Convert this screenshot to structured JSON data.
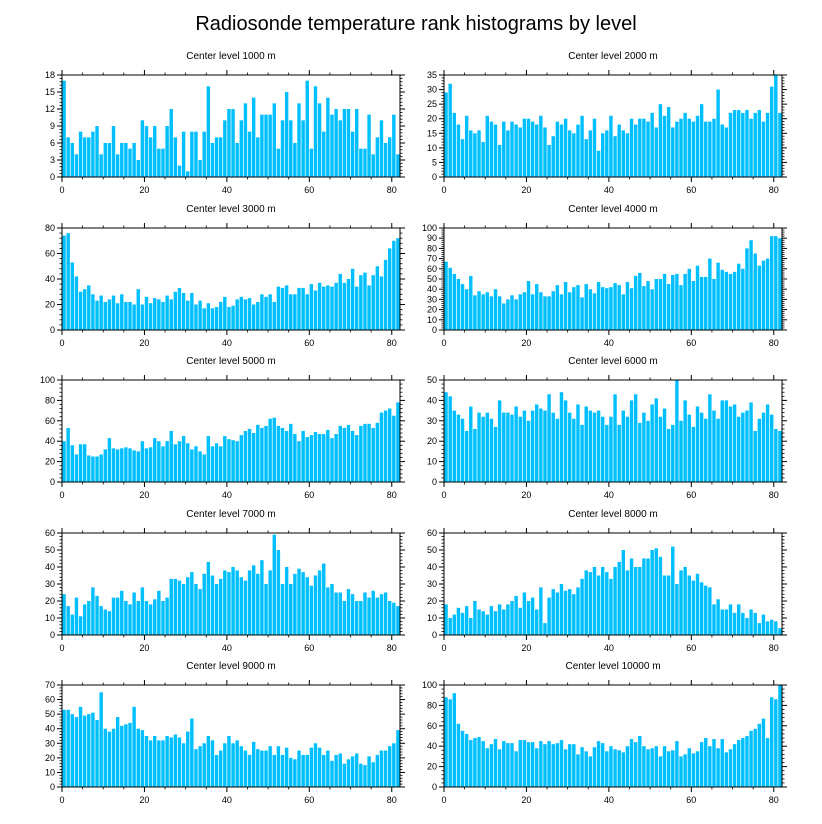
{
  "title": "Radiosonde temperature rank histograms by level",
  "bar_color": "#00bfff",
  "chart_data": [
    {
      "type": "bar",
      "title": "Center level 1000 m",
      "xlim": [
        0,
        82
      ],
      "ylim": [
        0,
        18
      ],
      "xticks": [
        0,
        20,
        40,
        60,
        80
      ],
      "yticks": [
        0,
        3,
        6,
        9,
        12,
        15,
        18
      ],
      "values": [
        17,
        7,
        6,
        4,
        8,
        7,
        7,
        8,
        9,
        4,
        6,
        6,
        9,
        4,
        6,
        6,
        5,
        6,
        3,
        10,
        9,
        7,
        9,
        5,
        5,
        9,
        12,
        7,
        2,
        8,
        1,
        8,
        8,
        3,
        8,
        16,
        6,
        7,
        7,
        10,
        12,
        12,
        6,
        10,
        13,
        8,
        14,
        7,
        11,
        11,
        11,
        13,
        5,
        10,
        15,
        10,
        6,
        13,
        10,
        17,
        5,
        16,
        13,
        8,
        14,
        11,
        12,
        10,
        12,
        12,
        8,
        12,
        5,
        5,
        11,
        4,
        7,
        10,
        6,
        7,
        11,
        4
      ]
    },
    {
      "type": "bar",
      "title": "Center level 2000 m",
      "xlim": [
        0,
        82
      ],
      "ylim": [
        0,
        35
      ],
      "xticks": [
        0,
        20,
        40,
        60,
        80
      ],
      "yticks": [
        0,
        5,
        10,
        15,
        20,
        25,
        30,
        35
      ],
      "values": [
        29,
        32,
        22,
        18,
        13,
        21,
        16,
        15,
        16,
        12,
        21,
        19,
        18,
        11,
        19,
        16,
        19,
        18,
        17,
        20,
        20,
        19,
        18,
        21,
        17,
        11,
        14,
        19,
        18,
        20,
        16,
        15,
        18,
        21,
        13,
        16,
        20,
        9,
        15,
        16,
        21,
        14,
        18,
        16,
        15,
        20,
        18,
        20,
        20,
        19,
        22,
        17,
        25,
        21,
        24,
        17,
        19,
        20,
        22,
        20,
        19,
        21,
        25,
        19,
        19,
        20,
        30,
        18,
        17,
        22,
        23,
        23,
        22,
        23,
        20,
        22,
        23,
        19,
        22,
        31,
        35,
        22
      ]
    },
    {
      "type": "bar",
      "title": "Center level 3000 m",
      "xlim": [
        0,
        82
      ],
      "ylim": [
        0,
        80
      ],
      "xticks": [
        0,
        20,
        40,
        60,
        80
      ],
      "yticks": [
        0,
        20,
        40,
        60,
        80
      ],
      "values": [
        74,
        76,
        53,
        42,
        30,
        32,
        35,
        28,
        23,
        27,
        22,
        24,
        27,
        21,
        28,
        22,
        22,
        20,
        32,
        20,
        26,
        21,
        25,
        24,
        22,
        27,
        24,
        30,
        33,
        29,
        23,
        29,
        20,
        23,
        17,
        21,
        17,
        18,
        22,
        26,
        18,
        19,
        24,
        26,
        24,
        25,
        20,
        22,
        28,
        26,
        28,
        22,
        34,
        33,
        35,
        28,
        28,
        33,
        33,
        28,
        36,
        31,
        37,
        34,
        35,
        34,
        37,
        44,
        37,
        40,
        48,
        34,
        43,
        45,
        35,
        43,
        50,
        42,
        55,
        64,
        70,
        72
      ]
    },
    {
      "type": "bar",
      "title": "Center level 4000 m",
      "xlim": [
        0,
        82
      ],
      "ylim": [
        0,
        100
      ],
      "xticks": [
        0,
        20,
        40,
        60,
        80
      ],
      "yticks": [
        0,
        10,
        20,
        30,
        40,
        50,
        60,
        70,
        80,
        90,
        100
      ],
      "values": [
        67,
        61,
        55,
        50,
        45,
        40,
        53,
        34,
        38,
        35,
        37,
        33,
        40,
        33,
        26,
        30,
        34,
        30,
        35,
        37,
        48,
        35,
        45,
        37,
        33,
        33,
        38,
        44,
        35,
        47,
        37,
        42,
        44,
        32,
        45,
        40,
        36,
        47,
        42,
        41,
        42,
        46,
        44,
        35,
        47,
        41,
        53,
        56,
        43,
        48,
        40,
        50,
        50,
        55,
        45,
        54,
        55,
        44,
        55,
        60,
        48,
        63,
        52,
        52,
        70,
        50,
        66,
        59,
        57,
        55,
        57,
        65,
        60,
        80,
        88,
        75,
        63,
        68,
        70,
        92,
        92,
        90
      ]
    },
    {
      "type": "bar",
      "title": "Center level 5000 m",
      "xlim": [
        0,
        82
      ],
      "ylim": [
        0,
        100
      ],
      "xticks": [
        0,
        20,
        40,
        60,
        80
      ],
      "yticks": [
        0,
        20,
        40,
        60,
        80,
        100
      ],
      "values": [
        40,
        53,
        36,
        27,
        37,
        37,
        26,
        25,
        25,
        27,
        32,
        43,
        33,
        32,
        33,
        34,
        33,
        31,
        30,
        40,
        33,
        34,
        43,
        40,
        35,
        40,
        50,
        37,
        40,
        45,
        38,
        32,
        35,
        30,
        27,
        45,
        35,
        38,
        35,
        45,
        42,
        41,
        40,
        46,
        50,
        52,
        48,
        56,
        53,
        55,
        62,
        63,
        55,
        53,
        50,
        57,
        47,
        40,
        50,
        44,
        46,
        49,
        47,
        47,
        51,
        43,
        47,
        55,
        53,
        56,
        50,
        46,
        55,
        57,
        57,
        53,
        58,
        68,
        70,
        72,
        65,
        78
      ]
    },
    {
      "type": "bar",
      "title": "Center level 6000 m",
      "xlim": [
        0,
        82
      ],
      "ylim": [
        0,
        50
      ],
      "xticks": [
        0,
        20,
        40,
        60,
        80
      ],
      "yticks": [
        0,
        10,
        20,
        30,
        40,
        50
      ],
      "values": [
        44,
        42,
        35,
        33,
        31,
        25,
        37,
        26,
        34,
        32,
        34,
        31,
        27,
        40,
        34,
        34,
        33,
        37,
        32,
        35,
        30,
        35,
        38,
        36,
        35,
        43,
        34,
        31,
        44,
        40,
        34,
        31,
        38,
        28,
        37,
        35,
        34,
        35,
        32,
        28,
        32,
        43,
        28,
        35,
        32,
        40,
        43,
        29,
        34,
        30,
        38,
        41,
        32,
        36,
        26,
        28,
        50,
        30,
        40,
        33,
        27,
        37,
        34,
        31,
        43,
        35,
        31,
        40,
        40,
        37,
        38,
        32,
        34,
        35,
        39,
        25,
        31,
        34,
        38,
        33,
        26,
        25
      ]
    },
    {
      "type": "bar",
      "title": "Center level 7000 m",
      "xlim": [
        0,
        82
      ],
      "ylim": [
        0,
        60
      ],
      "xticks": [
        0,
        20,
        40,
        60,
        80
      ],
      "yticks": [
        0,
        10,
        20,
        30,
        40,
        50,
        60
      ],
      "values": [
        24,
        17,
        12,
        22,
        11,
        18,
        20,
        28,
        23,
        17,
        15,
        14,
        22,
        22,
        26,
        20,
        18,
        25,
        20,
        28,
        20,
        18,
        21,
        26,
        20,
        22,
        33,
        33,
        32,
        30,
        34,
        37,
        30,
        27,
        36,
        43,
        35,
        30,
        33,
        38,
        37,
        40,
        38,
        34,
        32,
        38,
        41,
        36,
        44,
        30,
        38,
        59,
        50,
        30,
        40,
        30,
        36,
        39,
        37,
        34,
        29,
        35,
        38,
        42,
        28,
        30,
        25,
        25,
        20,
        27,
        24,
        20,
        20,
        25,
        22,
        26,
        22,
        24,
        25,
        20,
        19,
        17
      ]
    },
    {
      "type": "bar",
      "title": "Center level 8000 m",
      "xlim": [
        0,
        82
      ],
      "ylim": [
        0,
        60
      ],
      "xticks": [
        0,
        20,
        40,
        60,
        80
      ],
      "yticks": [
        0,
        10,
        20,
        30,
        40,
        50,
        60
      ],
      "values": [
        18,
        10,
        12,
        16,
        13,
        17,
        10,
        20,
        15,
        14,
        12,
        17,
        14,
        18,
        15,
        18,
        20,
        23,
        16,
        25,
        20,
        22,
        15,
        28,
        7,
        22,
        27,
        25,
        30,
        26,
        27,
        24,
        28,
        33,
        38,
        37,
        40,
        35,
        40,
        37,
        33,
        40,
        43,
        50,
        38,
        45,
        40,
        40,
        45,
        45,
        50,
        51,
        46,
        35,
        35,
        52,
        30,
        38,
        40,
        35,
        32,
        36,
        31,
        29,
        28,
        18,
        21,
        15,
        15,
        18,
        13,
        18,
        13,
        10,
        15,
        13,
        7,
        12,
        8,
        9,
        8,
        4
      ]
    },
    {
      "type": "bar",
      "title": "Center level 9000 m",
      "xlim": [
        0,
        82
      ],
      "ylim": [
        0,
        70
      ],
      "xticks": [
        0,
        20,
        40,
        60,
        80
      ],
      "yticks": [
        0,
        10,
        20,
        30,
        40,
        50,
        60,
        70
      ],
      "values": [
        53,
        53,
        50,
        48,
        55,
        49,
        50,
        51,
        46,
        65,
        40,
        38,
        40,
        48,
        42,
        43,
        44,
        55,
        40,
        39,
        35,
        32,
        35,
        32,
        32,
        35,
        34,
        36,
        34,
        30,
        38,
        47,
        26,
        28,
        30,
        35,
        32,
        22,
        25,
        30,
        35,
        30,
        32,
        28,
        25,
        22,
        31,
        26,
        25,
        25,
        28,
        22,
        28,
        22,
        27,
        20,
        19,
        25,
        22,
        22,
        27,
        30,
        27,
        22,
        25,
        18,
        22,
        23,
        16,
        19,
        21,
        23,
        16,
        15,
        21,
        17,
        22,
        25,
        25,
        28,
        30,
        39
      ]
    },
    {
      "type": "bar",
      "title": "Center level 10000 m",
      "xlim": [
        0,
        82
      ],
      "ylim": [
        0,
        100
      ],
      "xticks": [
        0,
        20,
        40,
        60,
        80
      ],
      "yticks": [
        0,
        20,
        40,
        60,
        80,
        100
      ],
      "values": [
        88,
        86,
        92,
        62,
        55,
        52,
        46,
        48,
        49,
        45,
        38,
        42,
        47,
        37,
        45,
        43,
        43,
        35,
        46,
        46,
        44,
        44,
        38,
        45,
        42,
        45,
        42,
        43,
        46,
        37,
        42,
        42,
        32,
        39,
        35,
        30,
        39,
        45,
        43,
        35,
        40,
        37,
        36,
        34,
        40,
        47,
        44,
        50,
        40,
        37,
        38,
        40,
        30,
        40,
        35,
        36,
        45,
        30,
        32,
        38,
        33,
        35,
        44,
        48,
        40,
        47,
        38,
        47,
        34,
        37,
        42,
        46,
        48,
        50,
        55,
        57,
        62,
        67,
        48,
        88,
        86,
        100
      ]
    }
  ]
}
